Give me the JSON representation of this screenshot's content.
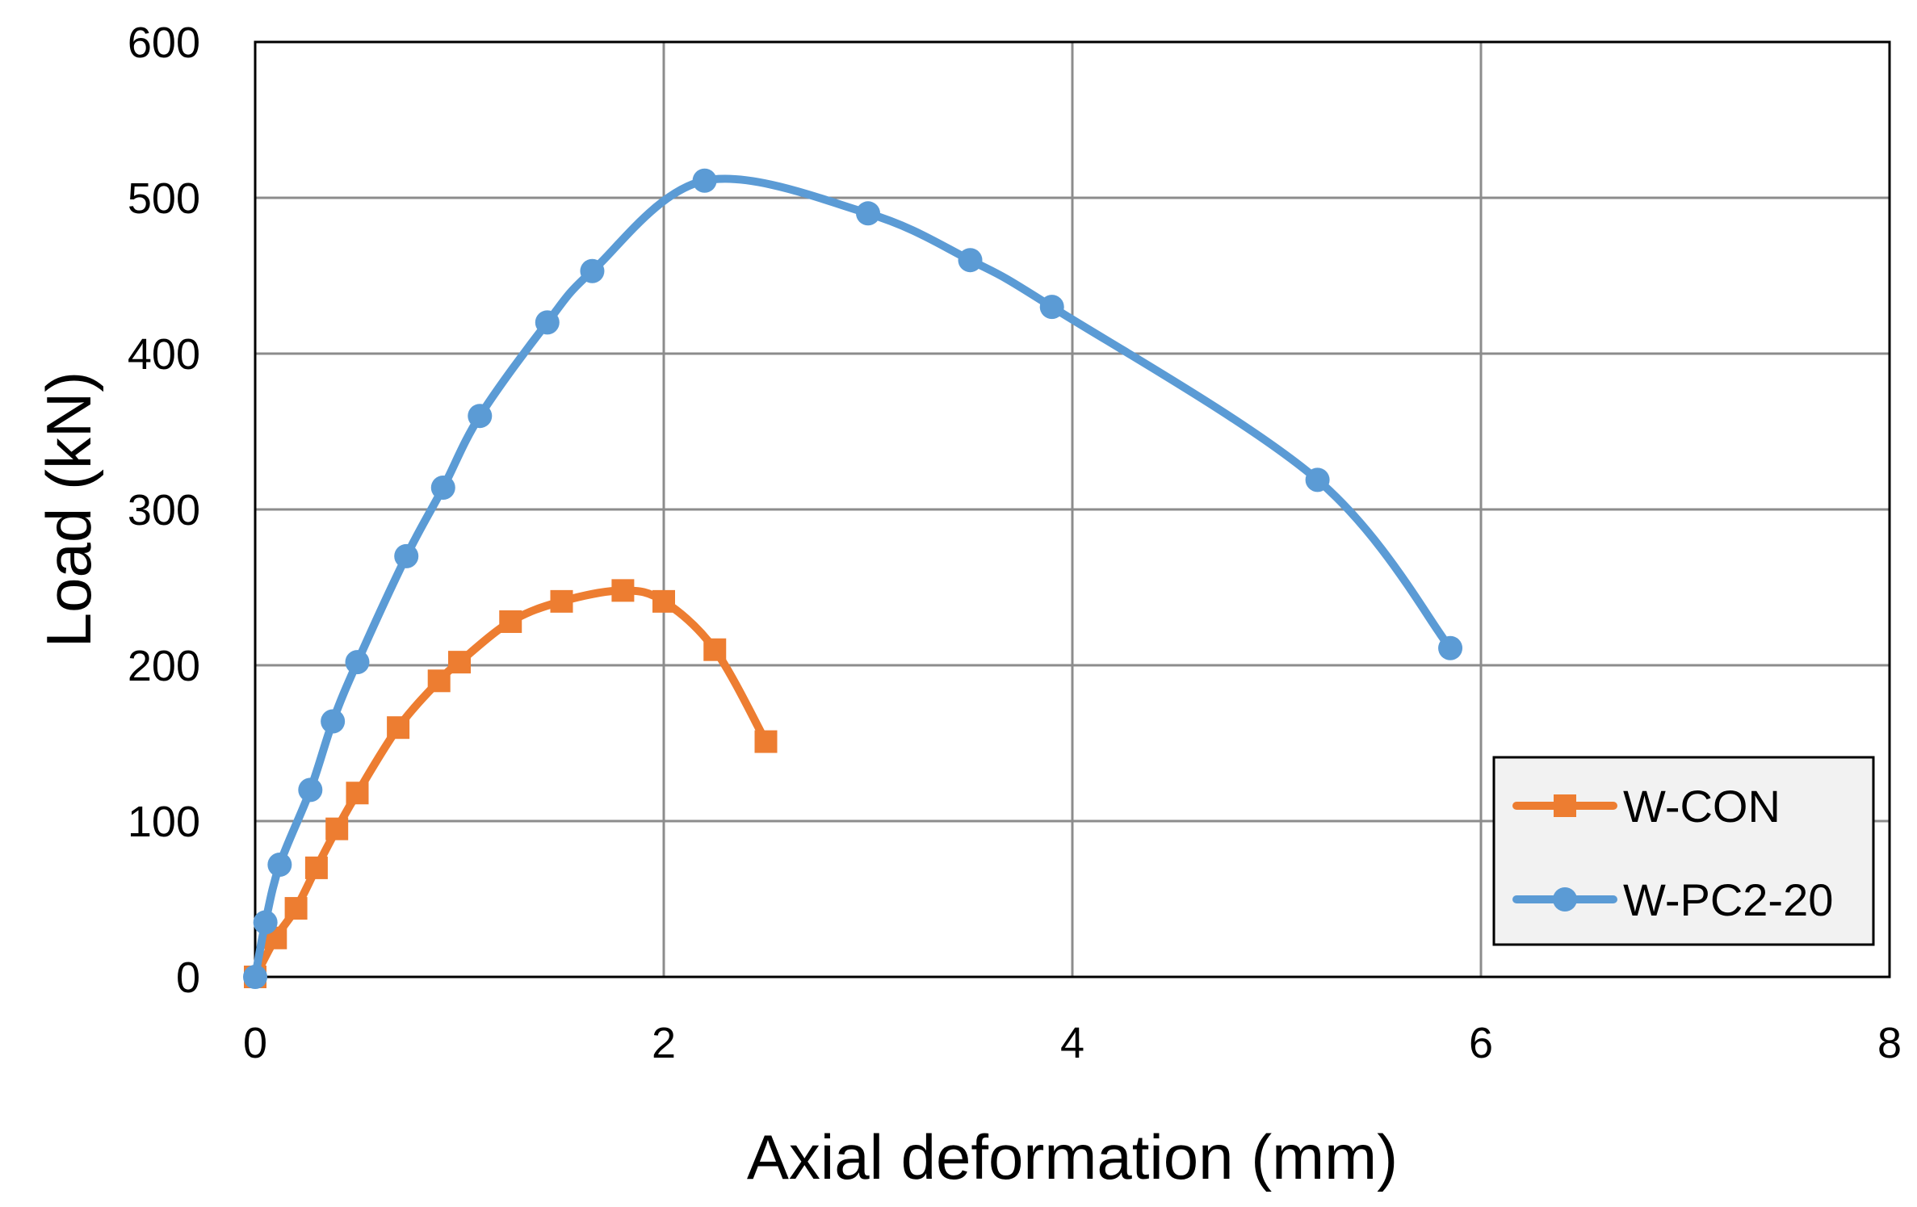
{
  "chart_data": {
    "type": "line",
    "title": "",
    "xlabel": "Axial deformation (mm)",
    "ylabel": "Load (kN)",
    "xlim": [
      0,
      8
    ],
    "ylim": [
      0,
      600
    ],
    "xticks": [
      0,
      2,
      4,
      6,
      8
    ],
    "yticks": [
      0,
      100,
      200,
      300,
      400,
      500,
      600
    ],
    "grid": true,
    "legend_position": "bottom-right",
    "series": [
      {
        "name": "W-CON",
        "color": "#ED7D31",
        "marker": "square",
        "x": [
          0,
          0.1,
          0.2,
          0.3,
          0.4,
          0.5,
          0.7,
          0.9,
          1.0,
          1.25,
          1.5,
          1.8,
          2.0,
          2.25,
          2.5
        ],
        "y": [
          0,
          25,
          44,
          70,
          95,
          118,
          160,
          190,
          202,
          228,
          241,
          248,
          241,
          210,
          151
        ]
      },
      {
        "name": "W-PC2-20",
        "color": "#5B9BD5",
        "marker": "circle",
        "x": [
          0,
          0.05,
          0.12,
          0.27,
          0.38,
          0.5,
          0.74,
          0.92,
          1.1,
          1.43,
          1.65,
          2.2,
          3.0,
          3.5,
          3.9,
          5.2,
          5.85
        ],
        "y": [
          0,
          35,
          72,
          120,
          164,
          202,
          270,
          314,
          360,
          420,
          453,
          511,
          490,
          460,
          430,
          319,
          211
        ]
      }
    ]
  }
}
